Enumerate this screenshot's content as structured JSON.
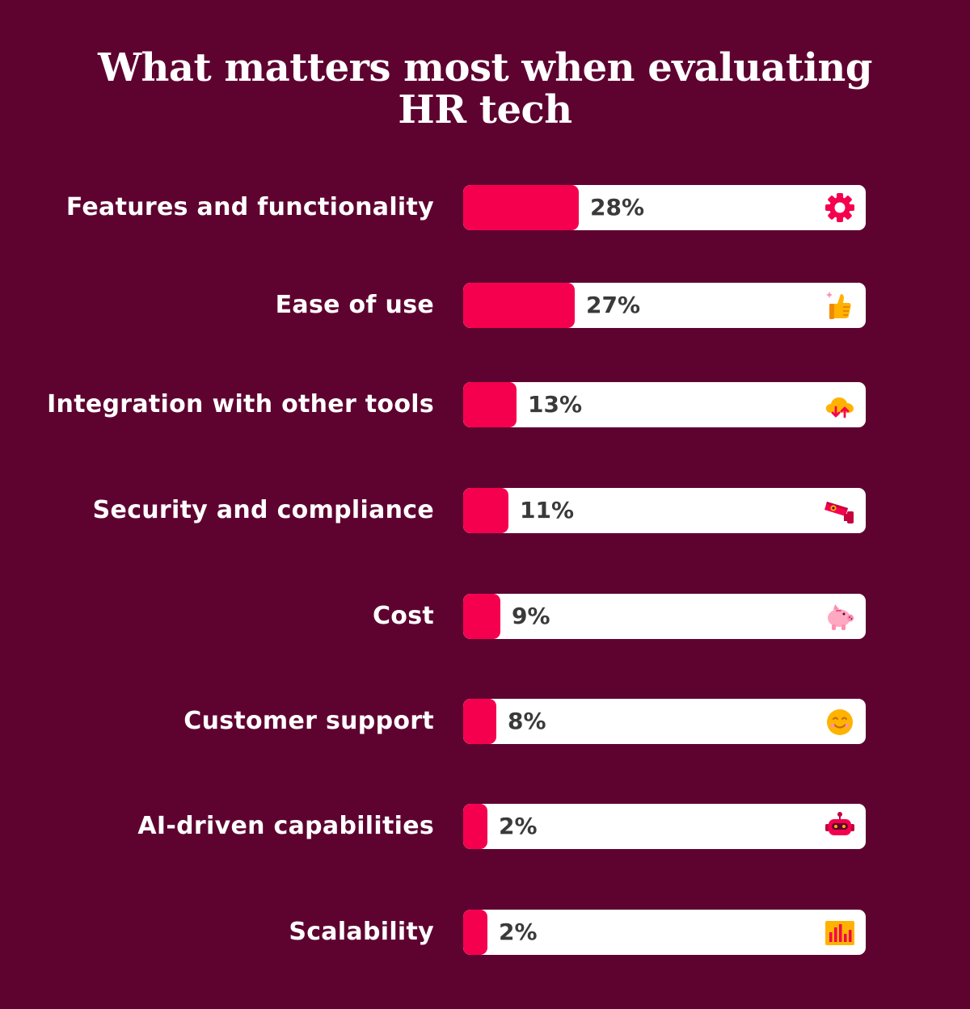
{
  "chart_data": {
    "type": "bar",
    "orientation": "horizontal",
    "title": "What matters most when evaluating HR tech",
    "categories": [
      "Features and functionality",
      "Ease of use",
      "Integration with other tools",
      "Security and compliance",
      "Cost",
      "Customer support",
      "AI-driven capabilities",
      "Scalability"
    ],
    "values": [
      28,
      27,
      13,
      11,
      9,
      8,
      2,
      2
    ],
    "value_labels": [
      "28%",
      "27%",
      "13%",
      "11%",
      "9%",
      "8%",
      "2%",
      "2%"
    ],
    "icons": [
      "gear-icon",
      "thumbs-up-icon",
      "cloud-sync-icon",
      "security-camera-icon",
      "piggy-bank-icon",
      "smiley-face-icon",
      "robot-icon",
      "bar-chart-icon"
    ],
    "colors": {
      "background": "#5e0330",
      "bar": "#f5004f",
      "track": "#ffffff",
      "label": "#ffffff",
      "value": "#3a3a3a"
    }
  }
}
